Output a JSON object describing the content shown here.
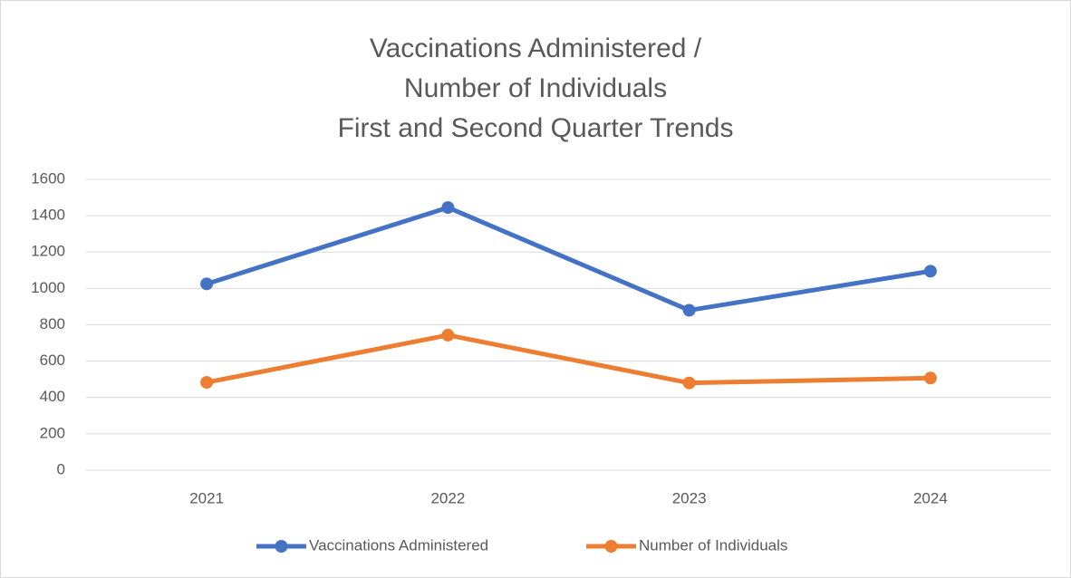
{
  "chart_data": {
    "type": "line",
    "title": [
      "Vaccinations Administered /",
      "Number of Individuals",
      "First and Second Quarter Trends"
    ],
    "categories": [
      "2021",
      "2022",
      "2023",
      "2024"
    ],
    "series": [
      {
        "name": "Vaccinations Administered",
        "color": "#4472c4",
        "values": [
          1025,
          1445,
          880,
          1095
        ]
      },
      {
        "name": "Number of Individuals",
        "color": "#ed7d31",
        "values": [
          483,
          743,
          480,
          507
        ]
      }
    ],
    "ylim": [
      0,
      1600
    ],
    "yticks": [
      0,
      200,
      400,
      600,
      800,
      1000,
      1200,
      1400,
      1600
    ],
    "grid": true,
    "legend": "bottom"
  }
}
